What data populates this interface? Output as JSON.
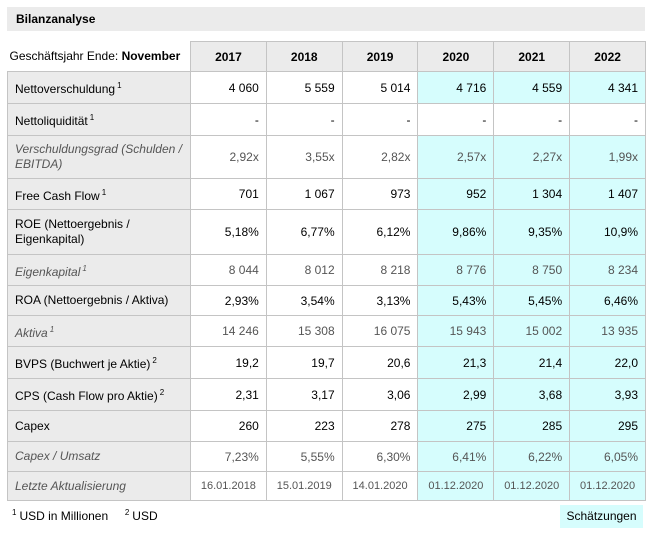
{
  "title": "Bilanzanalyse",
  "fiscal_year_label": "Geschäftsjahr Ende: ",
  "fiscal_year_month": "November",
  "years": [
    "2017",
    "2018",
    "2019",
    "2020",
    "2021",
    "2022"
  ],
  "estimate_start_index": 3,
  "estimate_color": "#d6fdfd",
  "rows": [
    {
      "label": "Nettoverschuldung",
      "note": "1",
      "italic": false,
      "estimates_highlighted": true,
      "values": [
        "4 060",
        "5 559",
        "5 014",
        "4 716",
        "4 559",
        "4 341"
      ]
    },
    {
      "label": "Nettoliquidität",
      "note": "1",
      "italic": false,
      "estimates_highlighted": false,
      "values": [
        "-",
        "-",
        "-",
        "-",
        "-",
        "-"
      ]
    },
    {
      "label": "Verschuldungsgrad (Schulden / EBITDA)",
      "note": "",
      "italic": true,
      "estimates_highlighted": true,
      "values": [
        "2,92x",
        "3,55x",
        "2,82x",
        "2,57x",
        "2,27x",
        "1,99x"
      ]
    },
    {
      "label": "Free Cash Flow",
      "note": "1",
      "italic": false,
      "estimates_highlighted": true,
      "values": [
        "701",
        "1 067",
        "973",
        "952",
        "1 304",
        "1 407"
      ]
    },
    {
      "label": "ROE (Nettoergebnis / Eigenkapital)",
      "note": "",
      "italic": false,
      "estimates_highlighted": true,
      "values": [
        "5,18%",
        "6,77%",
        "6,12%",
        "9,86%",
        "9,35%",
        "10,9%"
      ]
    },
    {
      "label": "Eigenkapital",
      "note": "1",
      "italic": true,
      "estimates_highlighted": true,
      "values": [
        "8 044",
        "8 012",
        "8 218",
        "8 776",
        "8 750",
        "8 234"
      ]
    },
    {
      "label": "ROA (Nettoergebnis / Aktiva)",
      "note": "",
      "italic": false,
      "estimates_highlighted": true,
      "values": [
        "2,93%",
        "3,54%",
        "3,13%",
        "5,43%",
        "5,45%",
        "6,46%"
      ]
    },
    {
      "label": "Aktiva",
      "note": "1",
      "italic": true,
      "estimates_highlighted": true,
      "values": [
        "14 246",
        "15 308",
        "16 075",
        "15 943",
        "15 002",
        "13 935"
      ]
    },
    {
      "label": "BVPS (Buchwert je Aktie)",
      "note": "2",
      "italic": false,
      "estimates_highlighted": true,
      "values": [
        "19,2",
        "19,7",
        "20,6",
        "21,3",
        "21,4",
        "22,0"
      ]
    },
    {
      "label": "CPS (Cash Flow pro Aktie)",
      "note": "2",
      "italic": false,
      "estimates_highlighted": true,
      "values": [
        "2,31",
        "3,17",
        "3,06",
        "2,99",
        "3,68",
        "3,93"
      ]
    },
    {
      "label": "Capex",
      "note": "",
      "italic": false,
      "estimates_highlighted": true,
      "values": [
        "260",
        "223",
        "278",
        "275",
        "285",
        "295"
      ]
    },
    {
      "label": "Capex / Umsatz",
      "note": "",
      "italic": true,
      "estimates_highlighted": true,
      "values": [
        "7,23%",
        "5,55%",
        "6,30%",
        "6,41%",
        "6,22%",
        "6,05%"
      ]
    },
    {
      "label": "Letzte Aktualisierung",
      "note": "",
      "italic": true,
      "estimates_highlighted": true,
      "is_date": true,
      "values": [
        "16.01.2018",
        "15.01.2019",
        "14.01.2020",
        "01.12.2020",
        "01.12.2020",
        "01.12.2020"
      ]
    }
  ],
  "row_heights_hint": null,
  "footnotes": [
    {
      "mark": "1",
      "text": "USD in Millionen"
    },
    {
      "mark": "2",
      "text": "USD"
    }
  ],
  "estimates_label": "Schätzungen"
}
